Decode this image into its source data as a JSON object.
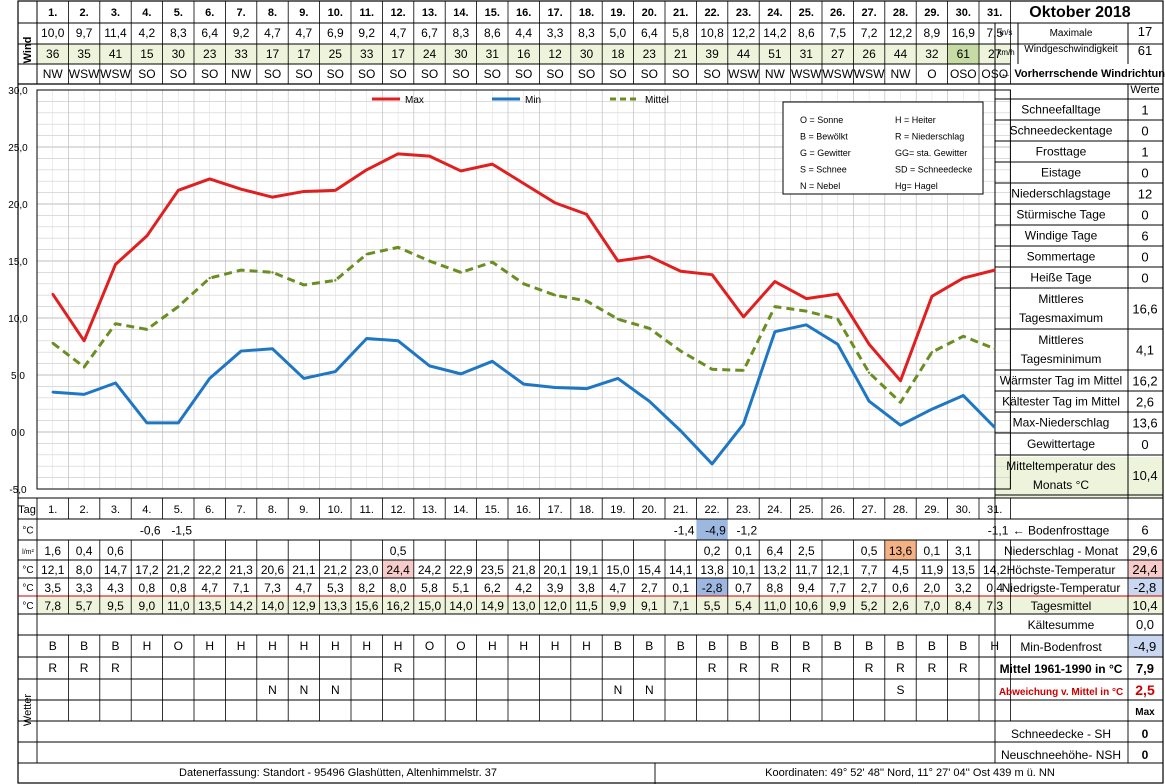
{
  "title": "Oktober 2018",
  "days": [
    "1.",
    "2.",
    "3.",
    "4.",
    "5.",
    "6.",
    "7.",
    "8.",
    "9.",
    "10.",
    "11.",
    "12.",
    "13.",
    "14.",
    "15.",
    "16.",
    "17.",
    "18.",
    "19.",
    "20.",
    "21.",
    "22.",
    "23.",
    "24.",
    "25.",
    "26.",
    "27.",
    "28.",
    "29.",
    "30.",
    "31."
  ],
  "wind": {
    "label": "Wind",
    "ms": [
      "10,0",
      "9,7",
      "11,4",
      "4,2",
      "8,3",
      "6,4",
      "9,2",
      "4,7",
      "4,7",
      "6,9",
      "9,2",
      "4,7",
      "6,7",
      "8,3",
      "8,6",
      "4,4",
      "3,3",
      "8,3",
      "5,0",
      "6,4",
      "5,8",
      "10,8",
      "12,2",
      "14,2",
      "8,6",
      "7,5",
      "7,2",
      "12,2",
      "8,9",
      "16,9",
      "7,5"
    ],
    "kmh": [
      "36",
      "35",
      "41",
      "15",
      "30",
      "23",
      "33",
      "17",
      "17",
      "25",
      "33",
      "17",
      "24",
      "30",
      "31",
      "16",
      "12",
      "30",
      "18",
      "23",
      "21",
      "39",
      "44",
      "51",
      "31",
      "27",
      "26",
      "44",
      "32",
      "61",
      "27"
    ],
    "dir": [
      "NW",
      "WSW",
      "WSW",
      "SO",
      "SO",
      "SO",
      "NW",
      "SO",
      "SO",
      "SO",
      "SO",
      "SO",
      "SO",
      "SO",
      "SO",
      "SO",
      "SO",
      "SO",
      "SO",
      "SO",
      "SO",
      "SO",
      "WSW",
      "NW",
      "WSW",
      "WSW",
      "WSW",
      "NW",
      "O",
      "OSO",
      "OSO"
    ],
    "unit_ms": "m/s",
    "unit_kmh": "km/h",
    "max_label_1": "Maximale",
    "max_label_2": "Windgeschwindigkeit",
    "max_ms": "17",
    "max_kmh": "61",
    "prevailing": "← Vorherrschende Windrichtung"
  },
  "legend": {
    "max": "Max",
    "min": "Min",
    "mittel": "Mittel",
    "codes": [
      "O = Sonne",
      "H = Heiter",
      "B = Bewölkt",
      "R = Niederschlag",
      "G = Gewitter",
      "GG= sta. Gewitter",
      "S = Schnee",
      "SD = Schneedecke",
      "N = Nebel",
      "Hg= Hagel"
    ]
  },
  "chart_data": {
    "type": "line",
    "x": [
      1,
      2,
      3,
      4,
      5,
      6,
      7,
      8,
      9,
      10,
      11,
      12,
      13,
      14,
      15,
      16,
      17,
      18,
      19,
      20,
      21,
      22,
      23,
      24,
      25,
      26,
      27,
      28,
      29,
      30,
      31
    ],
    "ylim": [
      -5,
      30
    ],
    "yticks": [
      "30,0",
      "25,0",
      "20,0",
      "15,0",
      "10,0",
      "5,0",
      "0,0",
      "-5,0"
    ],
    "grid": true,
    "legend_position": "top",
    "series": [
      {
        "name": "Max",
        "color": "#e02020",
        "dash": "solid",
        "values": [
          12.1,
          8.0,
          14.7,
          17.2,
          21.2,
          22.2,
          21.3,
          20.6,
          21.1,
          21.2,
          23.0,
          24.4,
          24.2,
          22.9,
          23.5,
          21.8,
          20.1,
          19.1,
          15.0,
          15.4,
          14.1,
          13.8,
          10.1,
          13.2,
          11.7,
          12.1,
          7.7,
          4.5,
          11.9,
          13.5,
          14.2
        ]
      },
      {
        "name": "Min",
        "color": "#1f77c4",
        "dash": "solid",
        "values": [
          3.5,
          3.3,
          4.3,
          0.8,
          0.8,
          4.7,
          7.1,
          7.3,
          4.7,
          5.3,
          8.2,
          8.0,
          5.8,
          5.1,
          6.2,
          4.2,
          3.9,
          3.8,
          4.7,
          2.7,
          0.1,
          -2.8,
          0.7,
          8.8,
          9.4,
          7.7,
          2.7,
          0.6,
          2.0,
          3.2,
          0.4
        ]
      },
      {
        "name": "Mittel",
        "color": "#6b8e23",
        "dash": "dashed",
        "values": [
          7.8,
          5.7,
          9.5,
          9.0,
          11.0,
          13.5,
          14.2,
          14.0,
          12.9,
          13.3,
          15.6,
          16.2,
          15.0,
          14.0,
          14.9,
          13.0,
          12.0,
          11.5,
          9.9,
          9.1,
          7.1,
          5.5,
          5.4,
          11.0,
          10.6,
          9.9,
          5.2,
          2.6,
          7.0,
          8.4,
          7.3
        ]
      }
    ]
  },
  "werte": {
    "header": "Werte",
    "rows": [
      {
        "label": "Schneefalltage",
        "value": "1"
      },
      {
        "label": "Schneedeckentage",
        "value": "0"
      },
      {
        "label": "Frosttage",
        "value": "1"
      },
      {
        "label": "Eistage",
        "value": "0"
      },
      {
        "label": "Niederschlagstage",
        "value": "12"
      },
      {
        "label": "Stürmische Tage",
        "value": "0"
      },
      {
        "label": "Windige Tage",
        "value": "6"
      },
      {
        "label": "Sommertage",
        "value": "0"
      },
      {
        "label": "Heiße Tage",
        "value": "0"
      },
      {
        "label": "Mittleres Tagesmaximum",
        "value": "16,6"
      },
      {
        "label": "Mittleres Tagesminimum",
        "value": "4,1"
      },
      {
        "label": "Wärmster Tag im Mittel",
        "value": "16,2"
      },
      {
        "label": "Kältester Tag im Mittel",
        "value": "2,6"
      },
      {
        "label": "Max-Niederschlag",
        "value": "13,6"
      },
      {
        "label": "Gewittertage",
        "value": "0"
      },
      {
        "label": "Mitteltemperatur des Monats °C",
        "value": "10,4"
      }
    ]
  },
  "table": {
    "tag_label": "Tag",
    "frost": {
      "unit": "°C",
      "values": [
        "",
        "",
        "",
        "-0,6",
        "-1,5",
        "",
        "",
        "",
        "",
        "",
        "",
        "",
        "",
        "",
        "",
        "",
        "",
        "",
        "",
        "",
        "-1,4",
        "-4,9",
        "-1,2",
        "",
        "",
        "",
        "",
        "",
        "",
        "",
        "-1,1"
      ],
      "label": "← Bodenfrosttage",
      "total": "6"
    },
    "rain": {
      "unit": "l/m²",
      "values": [
        "1,6",
        "0,4",
        "0,6",
        "",
        "",
        "",
        "",
        "",
        "",
        "",
        "",
        "0,5",
        "",
        "",
        "",
        "",
        "",
        "",
        "",
        "",
        "",
        "0,2",
        "0,1",
        "6,4",
        "2,5",
        "",
        "0,5",
        "13,6",
        "0,1",
        "3,1",
        ""
      ],
      "label": "Niederschlag - Monat",
      "total": "29,6"
    },
    "max": {
      "unit": "°C",
      "values": [
        "12,1",
        "8,0",
        "14,7",
        "17,2",
        "21,2",
        "22,2",
        "21,3",
        "20,6",
        "21,1",
        "21,2",
        "23,0",
        "24,4",
        "24,2",
        "22,9",
        "23,5",
        "21,8",
        "20,1",
        "19,1",
        "15,0",
        "15,4",
        "14,1",
        "13,8",
        "10,1",
        "13,2",
        "11,7",
        "12,1",
        "7,7",
        "4,5",
        "11,9",
        "13,5",
        "14,2"
      ],
      "label": "Höchste-Temperatur",
      "total": "24,4"
    },
    "min": {
      "unit": "°C",
      "values": [
        "3,5",
        "3,3",
        "4,3",
        "0,8",
        "0,8",
        "4,7",
        "7,1",
        "7,3",
        "4,7",
        "5,3",
        "8,2",
        "8,0",
        "5,8",
        "5,1",
        "6,2",
        "4,2",
        "3,9",
        "3,8",
        "4,7",
        "2,7",
        "0,1",
        "-2,8",
        "0,7",
        "8,8",
        "9,4",
        "7,7",
        "2,7",
        "0,6",
        "2,0",
        "3,2",
        "0,4"
      ],
      "label": "Niedrigste-Temperatur",
      "total": "-2,8"
    },
    "mean": {
      "unit": "°C",
      "values": [
        "7,8",
        "5,7",
        "9,5",
        "9,0",
        "11,0",
        "13,5",
        "14,2",
        "14,0",
        "12,9",
        "13,3",
        "15,6",
        "16,2",
        "15,0",
        "14,0",
        "14,9",
        "13,0",
        "12,0",
        "11,5",
        "9,9",
        "9,1",
        "7,1",
        "5,5",
        "5,4",
        "11,0",
        "10,6",
        "9,9",
        "5,2",
        "2,6",
        "7,0",
        "8,4",
        "7,3"
      ],
      "label": "Tagesmittel",
      "total": "10,4"
    },
    "kaeltesumme": {
      "label": "Kältesumme",
      "total": "0,0"
    },
    "bodenfrost": {
      "label": "Min-Bodenfrost",
      "total": "-4,9"
    },
    "mittel6190": {
      "label": "Mittel 1961-1990 in °C",
      "total": "7,9"
    },
    "abweichung": {
      "label": "Abweichung v. Mittel in °C",
      "total": "2,5"
    },
    "max_label": "Max",
    "wetter_label": "Wetter",
    "wetter": [
      [
        "B",
        "B",
        "B",
        "H",
        "O",
        "H",
        "H",
        "H",
        "H",
        "H",
        "H",
        "H",
        "O",
        "O",
        "H",
        "H",
        "H",
        "H",
        "B",
        "B",
        "B",
        "B",
        "B",
        "B",
        "B",
        "B",
        "B",
        "B",
        "B",
        "B",
        "H"
      ],
      [
        "R",
        "R",
        "R",
        "",
        "",
        "",
        "",
        "",
        "",
        "",
        "",
        "R",
        "",
        "",
        "",
        "",
        "",
        "",
        "",
        "",
        "",
        "R",
        "R",
        "R",
        "R",
        "",
        "R",
        "R",
        "R",
        "R",
        ""
      ],
      [
        "",
        "",
        "",
        "",
        "",
        "",
        "",
        "N",
        "N",
        "N",
        "",
        "",
        "",
        "",
        "",
        "",
        "",
        "",
        "N",
        "N",
        "",
        "",
        "",
        "",
        "",
        "",
        "",
        "S",
        "",
        "",
        ""
      ],
      [
        "",
        "",
        "",
        "",
        "",
        "",
        "",
        "",
        "",
        "",
        "",
        "",
        "",
        "",
        "",
        "",
        "",
        "",
        "",
        "",
        "",
        "",
        "",
        "",
        "",
        "",
        "",
        "",
        "",
        "",
        ""
      ]
    ],
    "schneedecke": {
      "label": "Schneedecke - SH",
      "value": "0"
    },
    "neuschnee": {
      "label": "Neuschneehöhe- NSH",
      "value": "0"
    }
  },
  "footer": {
    "left": "Datenerfassung:  Standort -  95496  Glashütten, Altenhimmelstr. 37",
    "right": "Koordinaten:  49° 52' 48'' Nord,   11° 27' 04'' Ost   439 m ü. NN"
  },
  "colors": {
    "wind_ms_bg": "#ffffff",
    "wind_kmh_bg": "#eef3dc",
    "highlight_blue": "#9db8e0",
    "highlight_orange": "#f4b183",
    "highlight_pink": "#f8cbcb",
    "mean_row_bg": "#eef3dc",
    "grid": "#bfbfbf",
    "red_text": "#cc0000"
  }
}
